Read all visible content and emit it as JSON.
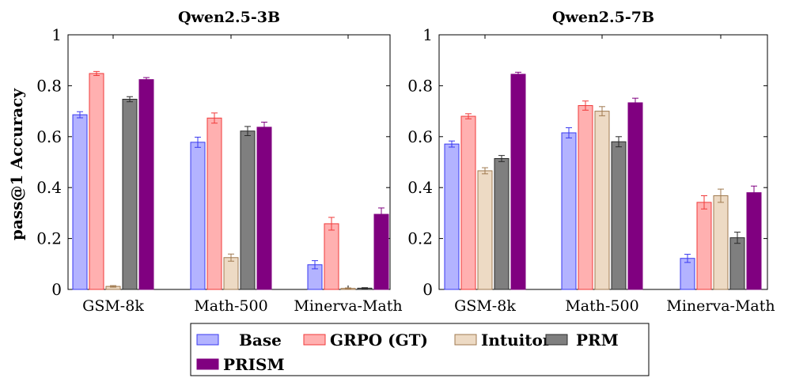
{
  "chart_data": [
    {
      "type": "bar",
      "title": "Qwen2.5-3B",
      "ylabel": "pass@1 Accuracy",
      "ylim": [
        0,
        1
      ],
      "yticks": [
        "0",
        "0.2",
        "0.4",
        "0.6",
        "0.8",
        "1"
      ],
      "categories": [
        "GSM-8k",
        "Math-500",
        "Minerva-Math"
      ],
      "series": [
        {
          "name": "Base",
          "values": [
            0.686,
            0.578,
            0.097
          ],
          "errors": [
            0.012,
            0.02,
            0.016
          ]
        },
        {
          "name": "GRPO (GT)",
          "values": [
            0.848,
            0.673,
            0.258
          ],
          "errors": [
            0.008,
            0.02,
            0.025
          ]
        },
        {
          "name": "Intuitor",
          "values": [
            0.012,
            0.125,
            0.004
          ],
          "errors": [
            0.003,
            0.014,
            0.002
          ]
        },
        {
          "name": "PRM",
          "values": [
            0.747,
            0.622,
            0.005
          ],
          "errors": [
            0.01,
            0.018,
            0.002
          ]
        },
        {
          "name": "PRISM",
          "values": [
            0.824,
            0.637,
            0.295
          ],
          "errors": [
            0.008,
            0.02,
            0.025
          ]
        }
      ]
    },
    {
      "type": "bar",
      "title": "Qwen2.5-7B",
      "ylabel": "",
      "ylim": [
        0,
        1
      ],
      "yticks": [
        "0",
        "0.2",
        "0.4",
        "0.6",
        "0.8",
        "1"
      ],
      "categories": [
        "GSM-8k",
        "Math-500",
        "Minerva-Math"
      ],
      "series": [
        {
          "name": "Base",
          "values": [
            0.571,
            0.615,
            0.122
          ],
          "errors": [
            0.012,
            0.02,
            0.016
          ]
        },
        {
          "name": "GRPO (GT)",
          "values": [
            0.68,
            0.722,
            0.342
          ],
          "errors": [
            0.01,
            0.018,
            0.026
          ]
        },
        {
          "name": "Intuitor",
          "values": [
            0.466,
            0.7,
            0.368
          ],
          "errors": [
            0.012,
            0.018,
            0.026
          ]
        },
        {
          "name": "PRM",
          "values": [
            0.514,
            0.58,
            0.203
          ],
          "errors": [
            0.012,
            0.02,
            0.022
          ]
        },
        {
          "name": "PRISM",
          "values": [
            0.845,
            0.733,
            0.38
          ],
          "errors": [
            0.008,
            0.018,
            0.026
          ]
        }
      ]
    }
  ],
  "legend": {
    "placement": "bottom",
    "items": [
      "Base",
      "GRPO (GT)",
      "Intuitor",
      "PRM",
      "PRISM"
    ]
  },
  "colors": {
    "Base": {
      "fill": "#b3b3ff",
      "stroke": "#3a3af0"
    },
    "GRPO (GT)": {
      "fill": "#ffb0b0",
      "stroke": "#f03a3a"
    },
    "Intuitor": {
      "fill": "#eddac4",
      "stroke": "#a07a50"
    },
    "PRM": {
      "fill": "#7f7f7f",
      "stroke": "#2a2a2a"
    },
    "PRISM": {
      "fill": "#800080",
      "stroke": "#800080"
    }
  }
}
